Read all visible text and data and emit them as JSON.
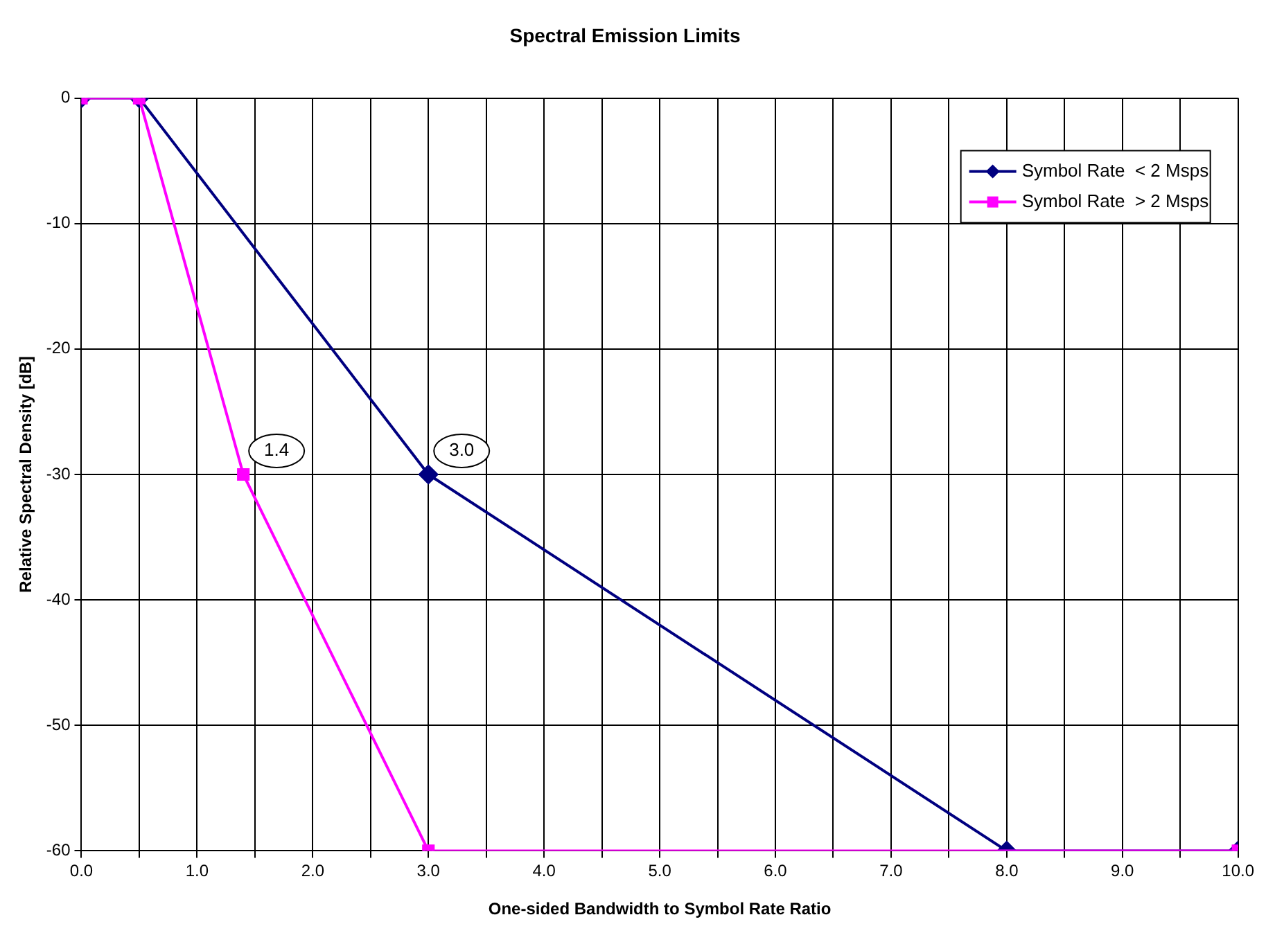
{
  "chart_data": {
    "type": "line",
    "title": "Spectral Emission Limits",
    "xlabel": "One-sided Bandwidth to Symbol Rate Ratio",
    "ylabel": "Relative Spectral Density [dB]",
    "series": [
      {
        "name": "Symbol Rate  < 2 Msps",
        "color": "#000080",
        "x": [
          0,
          0.5,
          3,
          8,
          10
        ],
        "values": [
          0,
          0,
          -30,
          -60,
          -60
        ],
        "marker": "diamond"
      },
      {
        "name": "Symbol Rate  > 2 Msps",
        "color": "#ff00ff",
        "x": [
          0,
          0.5,
          1.4,
          3,
          10
        ],
        "values": [
          0,
          0,
          -30,
          -60,
          -60
        ],
        "marker": "square"
      }
    ],
    "annotations": [
      {
        "text": "1.4",
        "x": 1.4,
        "y": -30
      },
      {
        "text": "3.0",
        "x": 3,
        "y": -30
      }
    ],
    "xlim": [
      0,
      10
    ],
    "ylim": [
      -60,
      0
    ],
    "xticks": [
      {
        "value": 0,
        "label": "0.0"
      },
      {
        "value": 0.5,
        "label": null
      },
      {
        "value": 1,
        "label": "1.0"
      },
      {
        "value": 1.5,
        "label": null
      },
      {
        "value": 2,
        "label": "2.0"
      },
      {
        "value": 2.5,
        "label": null
      },
      {
        "value": 3,
        "label": "3.0"
      },
      {
        "value": 3.5,
        "label": null
      },
      {
        "value": 4,
        "label": "4.0"
      },
      {
        "value": 4.5,
        "label": null
      },
      {
        "value": 5,
        "label": "5.0"
      },
      {
        "value": 5.5,
        "label": null
      },
      {
        "value": 6,
        "label": "6.0"
      },
      {
        "value": 6.5,
        "label": null
      },
      {
        "value": 7,
        "label": "7.0"
      },
      {
        "value": 7.5,
        "label": null
      },
      {
        "value": 8,
        "label": "8.0"
      },
      {
        "value": 8.5,
        "label": null
      },
      {
        "value": 9,
        "label": "9.0"
      },
      {
        "value": 9.5,
        "label": null
      },
      {
        "value": 10,
        "label": "10.0"
      }
    ],
    "yticks": [
      0,
      -10,
      -20,
      -30,
      -40,
      -50,
      -60
    ],
    "grid": true,
    "legend": "top right",
    "line_style": "solid"
  }
}
